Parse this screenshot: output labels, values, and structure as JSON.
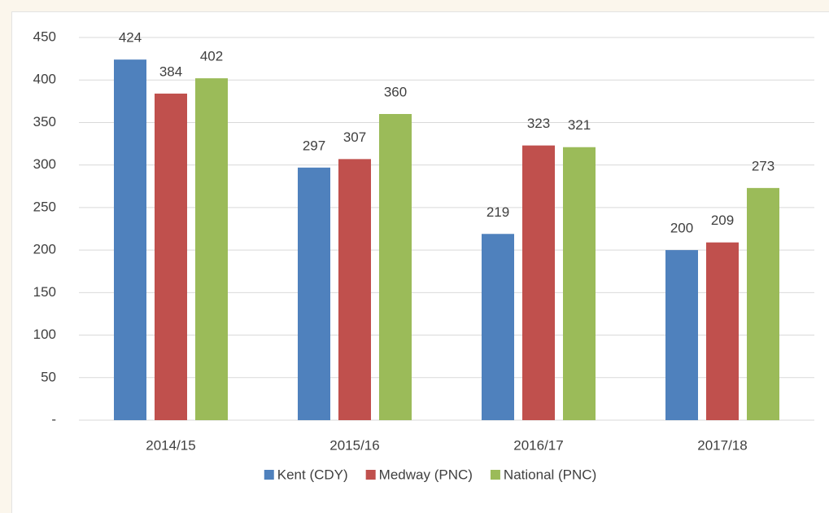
{
  "chart_data": {
    "type": "bar",
    "categories": [
      "2014/15",
      "2015/16",
      "2016/17",
      "2017/18"
    ],
    "series": [
      {
        "name": "Kent (CDY)",
        "color": "#4f81bd",
        "values": [
          424,
          297,
          219,
          200
        ]
      },
      {
        "name": "Medway (PNC)",
        "color": "#c0504d",
        "values": [
          384,
          307,
          323,
          209
        ]
      },
      {
        "name": "National (PNC)",
        "color": "#9bbb59",
        "values": [
          402,
          360,
          321,
          273
        ]
      }
    ],
    "ylim": [
      0,
      450
    ],
    "yticks": [
      {
        "value": 0,
        "label": "-"
      },
      50,
      100,
      150,
      200,
      250,
      300,
      350,
      400,
      450
    ],
    "grid": true,
    "legend": "bottom"
  }
}
